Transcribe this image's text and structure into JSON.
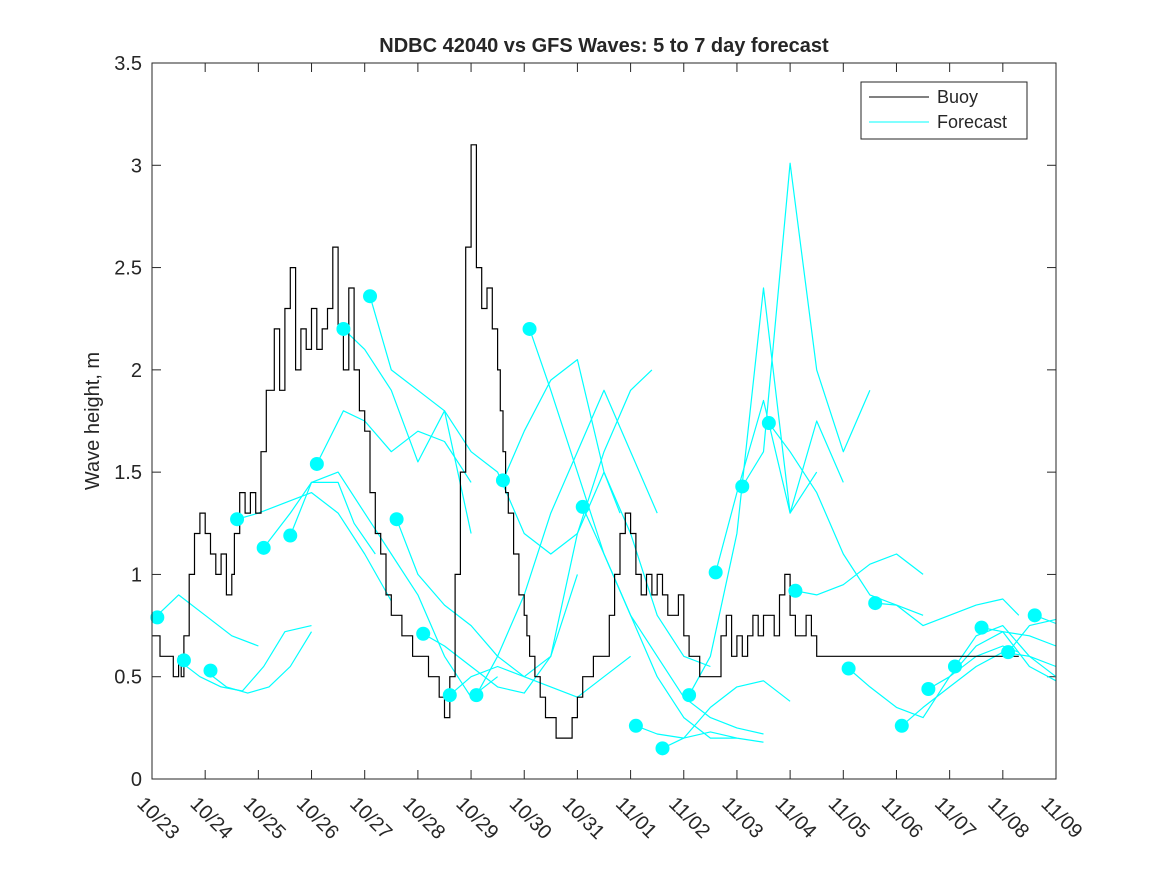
{
  "chart_data": {
    "type": "line",
    "title": "NDBC 42040 vs GFS Waves: 5 to 7 day forecast",
    "xlabel": "",
    "ylabel": "Wave height, m",
    "xlim": [
      0,
      17
    ],
    "ylim": [
      0,
      3.5
    ],
    "x_tick_labels": [
      "10/23",
      "10/24",
      "10/25",
      "10/26",
      "10/27",
      "10/28",
      "10/29",
      "10/30",
      "10/31",
      "11/01",
      "11/02",
      "11/03",
      "11/04",
      "11/05",
      "11/06",
      "11/07",
      "11/08",
      "11/09"
    ],
    "y_ticks": [
      0,
      0.5,
      1,
      1.5,
      2,
      2.5,
      3,
      3.5
    ],
    "y_tick_labels": [
      "0",
      "0.5",
      "1",
      "1.5",
      "2",
      "2.5",
      "3",
      "3.5"
    ],
    "legend": {
      "position": "top-right",
      "entries": [
        {
          "label": "Buoy",
          "color": "#000000"
        },
        {
          "label": "Forecast",
          "color": "#00ffff"
        }
      ]
    },
    "colors": {
      "buoy": "#000000",
      "forecast": "#00ffff",
      "marker": "#00ffff"
    },
    "buoy": {
      "x": [
        0,
        0.15,
        0.3,
        0.4,
        0.5,
        0.55,
        0.6,
        0.7,
        0.8,
        0.9,
        1.0,
        1.1,
        1.2,
        1.3,
        1.4,
        1.5,
        1.55,
        1.65,
        1.75,
        1.85,
        1.95,
        2.05,
        2.15,
        2.3,
        2.4,
        2.5,
        2.6,
        2.7,
        2.8,
        2.9,
        3.0,
        3.1,
        3.2,
        3.3,
        3.4,
        3.5,
        3.6,
        3.7,
        3.8,
        3.9,
        4.0,
        4.1,
        4.2,
        4.3,
        4.4,
        4.5,
        4.6,
        4.7,
        4.8,
        4.9,
        5.0,
        5.1,
        5.2,
        5.3,
        5.4,
        5.5,
        5.6,
        5.7,
        5.8,
        5.9,
        6.0,
        6.1,
        6.2,
        6.3,
        6.4,
        6.5,
        6.55,
        6.6,
        6.65,
        6.7,
        6.8,
        6.9,
        7.0,
        7.05,
        7.1,
        7.2,
        7.3,
        7.4,
        7.5,
        7.6,
        7.7,
        7.8,
        7.9,
        8.0,
        8.1,
        8.2,
        8.3,
        8.4,
        8.5,
        8.6,
        8.7,
        8.8,
        8.9,
        9.0,
        9.1,
        9.2,
        9.3,
        9.4,
        9.5,
        9.6,
        9.7,
        9.8,
        9.9,
        10.0,
        10.1,
        10.2,
        10.3,
        10.4,
        10.5,
        10.6,
        10.7,
        10.8,
        10.9,
        11.0,
        11.1,
        11.2,
        11.3,
        11.4,
        11.5,
        11.6,
        11.7,
        11.8,
        11.9,
        12.0,
        12.1,
        12.2,
        12.3,
        12.4,
        12.5,
        12.6,
        12.7,
        12.8,
        12.9,
        13.0,
        13.1,
        13.2,
        13.3,
        13.4,
        13.5,
        13.6,
        13.7,
        13.8,
        13.9,
        14.0,
        14.1,
        14.2,
        14.3,
        14.4,
        14.5,
        14.6,
        14.7,
        14.8,
        14.9,
        15.0,
        15.1,
        15.2,
        15.3,
        15.4,
        15.5,
        15.6,
        15.7,
        15.8,
        15.9,
        16.0,
        16.1,
        16.2,
        16.3
      ],
      "y": [
        0.7,
        0.6,
        0.6,
        0.5,
        0.6,
        0.5,
        0.7,
        1.0,
        1.2,
        1.3,
        1.2,
        1.1,
        1.0,
        1.1,
        0.9,
        1.0,
        1.2,
        1.4,
        1.3,
        1.4,
        1.3,
        1.6,
        1.9,
        2.2,
        1.9,
        2.3,
        2.5,
        2.0,
        2.2,
        2.1,
        2.3,
        2.1,
        2.2,
        2.3,
        2.6,
        2.2,
        2.0,
        2.4,
        2.0,
        1.8,
        1.7,
        1.4,
        1.2,
        1.1,
        0.9,
        0.8,
        0.8,
        0.7,
        0.7,
        0.6,
        0.6,
        0.6,
        0.5,
        0.5,
        0.4,
        0.3,
        0.5,
        1.0,
        1.5,
        2.6,
        3.1,
        2.5,
        2.3,
        2.4,
        2.2,
        2.0,
        1.8,
        1.6,
        1.4,
        1.3,
        1.1,
        0.9,
        0.8,
        0.7,
        0.6,
        0.5,
        0.4,
        0.3,
        0.3,
        0.2,
        0.2,
        0.2,
        0.3,
        0.4,
        0.5,
        0.5,
        0.6,
        0.6,
        0.6,
        0.8,
        1.0,
        1.2,
        1.3,
        1.2,
        1.0,
        0.9,
        1.0,
        0.9,
        1.0,
        0.9,
        0.8,
        0.8,
        0.9,
        0.7,
        0.6,
        0.6,
        0.5,
        0.5,
        0.5,
        0.5,
        0.7,
        0.8,
        0.6,
        0.7,
        0.6,
        0.7,
        0.8,
        0.7,
        0.8,
        0.8,
        0.7,
        0.9,
        1.0,
        0.8,
        0.7,
        0.7,
        0.8,
        0.7,
        0.6,
        0.6,
        0.6,
        0.6,
        0.6,
        0.6,
        0.6,
        0.6,
        0.6,
        0.6,
        0.6,
        0.6,
        0.6,
        0.6,
        0.6,
        0.6,
        0.6,
        0.6,
        0.6,
        0.6,
        0.6,
        0.6,
        0.6,
        0.6,
        0.6,
        0.6,
        0.6,
        0.6,
        0.6,
        0.6,
        0.6,
        0.6,
        0.6,
        0.6,
        0.6,
        0.6,
        0.6,
        0.6,
        0.6
      ]
    },
    "forecasts": [
      {
        "x": [
          0.1,
          0.5,
          1.0,
          1.5,
          2.0
        ],
        "y": [
          0.8,
          0.9,
          0.8,
          0.7,
          0.65
        ]
      },
      {
        "x": [
          0.5,
          0.9,
          1.3,
          1.7,
          2.1,
          2.5,
          3.0
        ],
        "y": [
          0.58,
          0.5,
          0.45,
          0.43,
          0.55,
          0.72,
          0.75
        ]
      },
      {
        "x": [
          1.0,
          1.4,
          1.8,
          2.2,
          2.6,
          3.0
        ],
        "y": [
          0.53,
          0.45,
          0.42,
          0.45,
          0.55,
          0.72
        ]
      },
      {
        "x": [
          1.6,
          2.0,
          2.5,
          3.0,
          3.5,
          4.0,
          4.5
        ],
        "y": [
          1.27,
          1.3,
          1.35,
          1.4,
          1.3,
          1.1,
          0.87
        ]
      },
      {
        "x": [
          2.1,
          2.6,
          3.0,
          3.5,
          3.8,
          4.2
        ],
        "y": [
          1.13,
          1.3,
          1.45,
          1.45,
          1.25,
          1.1
        ]
      },
      {
        "x": [
          2.6,
          3.0,
          3.5,
          4.0,
          4.5,
          5.0,
          5.5,
          6.0,
          6.5
        ],
        "y": [
          1.19,
          1.45,
          1.5,
          1.3,
          1.1,
          0.9,
          0.6,
          0.4,
          0.5
        ]
      },
      {
        "x": [
          3.1,
          3.6,
          4.0,
          4.5,
          5.0,
          5.5,
          6.0
        ],
        "y": [
          1.54,
          1.8,
          1.75,
          1.6,
          1.7,
          1.65,
          1.45
        ]
      },
      {
        "x": [
          3.6,
          4.0,
          4.5,
          5.0,
          5.5,
          6.0
        ],
        "y": [
          2.2,
          2.1,
          1.9,
          1.55,
          1.8,
          1.2
        ]
      },
      {
        "x": [
          4.1,
          4.5,
          5.0,
          5.5,
          6.0,
          6.5,
          7.0,
          7.5,
          8.0,
          8.5,
          8.8
        ],
        "y": [
          2.36,
          2.0,
          1.9,
          1.8,
          1.6,
          1.5,
          1.2,
          1.1,
          1.2,
          1.5,
          1.3
        ]
      },
      {
        "x": [
          4.6,
          5.0,
          5.5,
          6.0,
          6.5,
          7.0,
          7.5,
          8.0,
          8.5,
          9.0
        ],
        "y": [
          1.27,
          1.0,
          0.85,
          0.75,
          0.6,
          0.5,
          0.45,
          0.4,
          0.5,
          0.6
        ]
      },
      {
        "x": [
          5.1,
          5.5,
          6.0,
          6.5,
          7.0,
          7.5,
          8.0
        ],
        "y": [
          0.71,
          0.65,
          0.55,
          0.45,
          0.42,
          0.6,
          1.0
        ]
      },
      {
        "x": [
          5.6,
          6.0,
          6.5,
          7.0,
          7.5,
          8.0,
          8.5,
          9.0,
          9.4
        ],
        "y": [
          0.41,
          0.5,
          0.55,
          0.5,
          0.6,
          1.2,
          1.6,
          1.9,
          2.0
        ]
      },
      {
        "x": [
          6.1,
          6.5,
          7.0,
          7.5,
          8.0,
          8.5,
          9.0,
          9.5
        ],
        "y": [
          0.41,
          0.6,
          0.9,
          1.3,
          1.6,
          1.9,
          1.6,
          1.3
        ]
      },
      {
        "x": [
          6.6,
          7.0,
          7.5,
          8.0,
          8.5,
          9.0,
          9.5,
          10.0,
          10.5
        ],
        "y": [
          1.46,
          1.7,
          1.95,
          2.05,
          1.5,
          1.2,
          0.8,
          0.6,
          0.55
        ]
      },
      {
        "x": [
          7.1,
          7.5,
          8.0,
          8.5,
          9.0,
          9.5,
          10.0,
          10.5,
          11.0
        ],
        "y": [
          2.2,
          1.9,
          1.5,
          1.1,
          0.8,
          0.5,
          0.3,
          0.2,
          0.2
        ]
      },
      {
        "x": [
          8.1,
          8.5,
          9.0,
          9.5,
          10.0,
          10.5,
          11.0,
          11.5
        ],
        "y": [
          1.33,
          1.1,
          0.8,
          0.6,
          0.4,
          0.3,
          0.25,
          0.22
        ]
      },
      {
        "x": [
          9.1,
          9.5,
          10.0,
          10.5,
          11.0,
          11.5
        ],
        "y": [
          0.26,
          0.22,
          0.2,
          0.23,
          0.2,
          0.18
        ]
      },
      {
        "x": [
          9.6,
          10.0,
          10.5,
          11.0,
          11.5,
          12.0
        ],
        "y": [
          0.15,
          0.2,
          0.35,
          0.45,
          0.48,
          0.38
        ]
      },
      {
        "x": [
          10.1,
          10.5,
          11.0,
          11.5,
          12.0,
          12.5
        ],
        "y": [
          0.41,
          0.6,
          1.2,
          2.4,
          1.3,
          1.5
        ]
      },
      {
        "x": [
          10.6,
          11.0,
          11.5,
          12.0,
          12.5,
          13.0
        ],
        "y": [
          1.01,
          1.4,
          1.85,
          1.3,
          1.75,
          1.45
        ]
      },
      {
        "x": [
          11.1,
          11.5,
          12.0,
          12.5,
          13.0,
          13.5
        ],
        "y": [
          1.43,
          1.6,
          3.01,
          2.0,
          1.6,
          1.9
        ]
      },
      {
        "x": [
          11.6,
          12.0,
          12.5,
          13.0,
          13.5,
          14.0,
          14.5
        ],
        "y": [
          1.74,
          1.6,
          1.4,
          1.1,
          0.9,
          0.85,
          0.8
        ]
      },
      {
        "x": [
          12.1,
          12.5,
          13.0,
          13.5,
          14.0,
          14.5
        ],
        "y": [
          0.92,
          0.9,
          0.95,
          1.05,
          1.1,
          1.0
        ]
      },
      {
        "x": [
          13.1,
          13.5,
          14.0,
          14.5,
          15.0,
          15.5,
          16.0,
          16.3
        ],
        "y": [
          0.54,
          0.45,
          0.35,
          0.3,
          0.5,
          0.6,
          0.65,
          0.62
        ]
      },
      {
        "x": [
          13.6,
          14.0,
          14.5,
          15.0,
          15.5,
          16.0,
          16.3
        ],
        "y": [
          0.86,
          0.85,
          0.75,
          0.8,
          0.85,
          0.88,
          0.8
        ]
      },
      {
        "x": [
          14.1,
          14.5,
          15.0,
          15.5,
          16.0,
          16.5,
          17.0
        ],
        "y": [
          0.26,
          0.35,
          0.45,
          0.55,
          0.62,
          0.6,
          0.55
        ]
      },
      {
        "x": [
          14.6,
          15.0,
          15.5,
          16.0,
          16.5,
          17.0
        ],
        "y": [
          0.44,
          0.5,
          0.65,
          0.72,
          0.7,
          0.65
        ]
      },
      {
        "x": [
          15.1,
          15.5,
          16.0,
          16.5,
          17.0
        ],
        "y": [
          0.55,
          0.7,
          0.75,
          0.6,
          0.5
        ]
      },
      {
        "x": [
          15.6,
          16.0,
          16.5,
          17.0
        ],
        "y": [
          0.74,
          0.72,
          0.55,
          0.48
        ]
      },
      {
        "x": [
          16.1,
          16.5,
          17.0
        ],
        "y": [
          0.62,
          0.75,
          0.78
        ]
      },
      {
        "x": [
          16.6,
          17.0
        ],
        "y": [
          0.8,
          0.76
        ]
      }
    ],
    "markers": {
      "x": [
        0.1,
        0.6,
        1.1,
        1.6,
        2.1,
        2.6,
        3.1,
        3.6,
        4.1,
        4.6,
        5.1,
        5.6,
        6.1,
        6.6,
        7.1,
        8.1,
        9.1,
        9.6,
        10.1,
        10.6,
        11.1,
        11.6,
        12.1,
        13.1,
        13.6,
        14.1,
        14.6,
        15.1,
        15.6,
        16.1,
        16.6
      ],
      "y": [
        0.79,
        0.58,
        0.53,
        1.27,
        1.13,
        1.19,
        1.54,
        2.2,
        2.36,
        1.27,
        0.71,
        0.41,
        0.41,
        1.46,
        2.2,
        1.33,
        0.26,
        0.15,
        0.41,
        1.01,
        1.43,
        1.74,
        0.92,
        0.54,
        0.86,
        0.26,
        0.44,
        0.55,
        0.74,
        0.62,
        0.8
      ]
    }
  }
}
